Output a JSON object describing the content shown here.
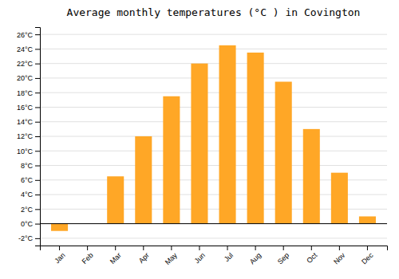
{
  "chart_data": {
    "type": "bar",
    "title": "Average monthly temperatures (°C ) in Covington",
    "categories": [
      "Jan",
      "Feb",
      "Mar",
      "Apr",
      "May",
      "Jun",
      "Jul",
      "Aug",
      "Sep",
      "Oct",
      "Nov",
      "Dec"
    ],
    "values": [
      -1.0,
      0.0,
      6.5,
      12.0,
      17.5,
      22.0,
      24.5,
      23.5,
      19.5,
      13.0,
      7.0,
      1.0
    ],
    "color": "#FFA726",
    "ylim": [
      -3,
      27
    ],
    "yticks": [
      {
        "value": -2,
        "label": "-2°C"
      },
      {
        "value": 0,
        "label": "0°C"
      },
      {
        "value": 2,
        "label": "2°C"
      },
      {
        "value": 4,
        "label": "4°C"
      },
      {
        "value": 6,
        "label": "6°C"
      },
      {
        "value": 8,
        "label": "8°C"
      },
      {
        "value": 10,
        "label": "10°C"
      },
      {
        "value": 12,
        "label": "12°C"
      },
      {
        "value": 14,
        "label": "14°C"
      },
      {
        "value": 16,
        "label": "16°C"
      },
      {
        "value": 18,
        "label": "18°C"
      },
      {
        "value": 20,
        "label": "20°C"
      },
      {
        "value": 22,
        "label": "22°C"
      },
      {
        "value": 24,
        "label": "24°C"
      },
      {
        "value": 26,
        "label": "26°C"
      }
    ],
    "grid": true
  }
}
